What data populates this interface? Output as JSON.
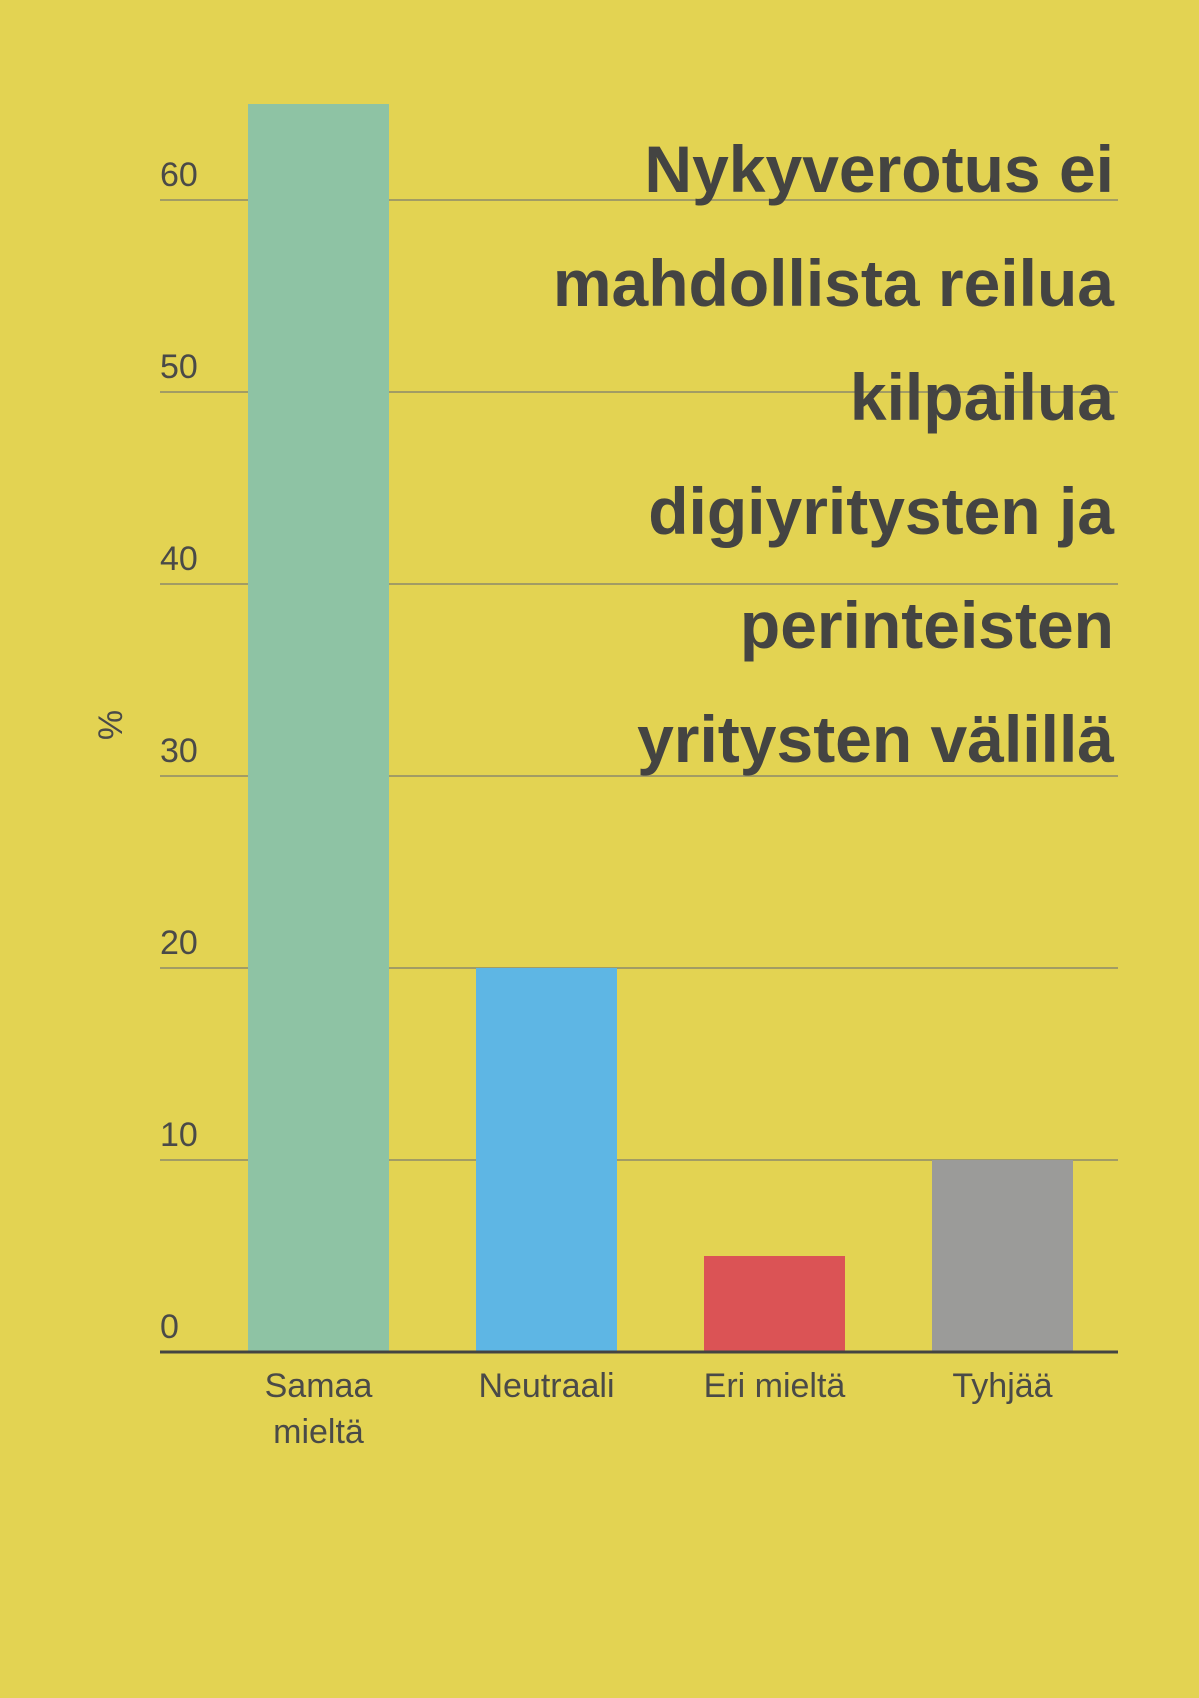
{
  "chart_data": {
    "type": "bar",
    "categories": [
      [
        "Samaa",
        "mieltä"
      ],
      [
        "Neutraali"
      ],
      [
        "Eri mieltä"
      ],
      [
        "Tyhjää"
      ]
    ],
    "values": [
      65,
      20,
      5,
      10
    ],
    "colors": [
      "#8ec3a4",
      "#5eb6e4",
      "#db5355",
      "#9b9b99"
    ],
    "title_lines": [
      "Nykyverotus ei",
      "mahdollista reilua",
      "kilpailua",
      "digiyritysten ja",
      "perinteisten",
      "yritysten välillä"
    ],
    "ylabel": "%",
    "ylim": [
      0,
      65
    ],
    "yticks": [
      0,
      10,
      20,
      30,
      40,
      50,
      60
    ],
    "grid": true
  }
}
